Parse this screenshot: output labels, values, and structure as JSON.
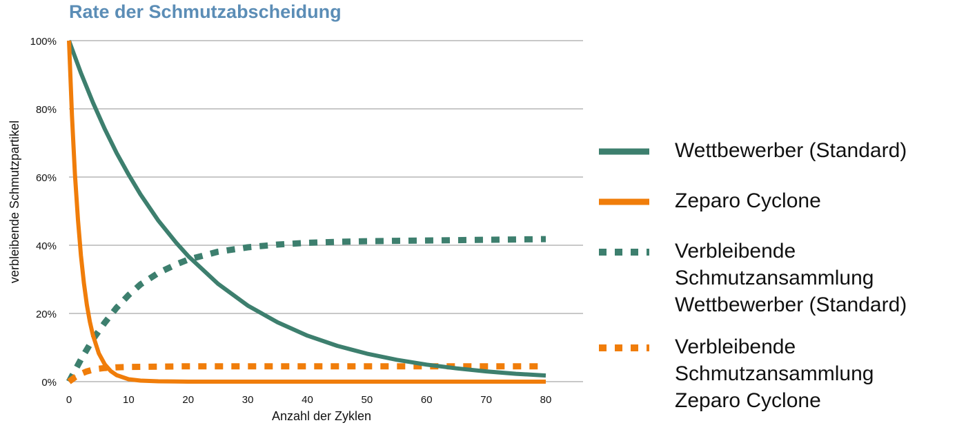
{
  "chart_data": {
    "type": "line",
    "title": "Rate der Schmutzabscheidung",
    "xlabel": "Anzahl der Zyklen",
    "ylabel": "verbleibende Schmutzpartikel",
    "xlim": [
      0,
      80
    ],
    "ylim": [
      0,
      100
    ],
    "x_ticks": [
      "0",
      "10",
      "20",
      "30",
      "40",
      "50",
      "60",
      "70",
      "80"
    ],
    "y_ticks": [
      "0%",
      "20%",
      "40%",
      "60%",
      "80%",
      "100%"
    ],
    "grid": "horizontal",
    "legend_position": "right",
    "series": [
      {
        "name": "Wettbewerber (Standard)",
        "style": "solid",
        "color": "#3d7f6e",
        "x": [
          0,
          2,
          4,
          6,
          8,
          10,
          12,
          15,
          18,
          20,
          25,
          30,
          35,
          40,
          45,
          50,
          55,
          60,
          65,
          70,
          75,
          80
        ],
        "y": [
          100,
          90.5,
          81.9,
          74.1,
          67.0,
          60.7,
          54.9,
          47.2,
          40.7,
          36.8,
          28.7,
          22.3,
          17.4,
          13.5,
          10.5,
          8.2,
          6.4,
          5.0,
          3.9,
          3.0,
          2.3,
          1.8
        ]
      },
      {
        "name": "Zeparo Cyclone",
        "style": "solid",
        "color": "#f07d0a",
        "x": [
          0,
          0.5,
          1,
          1.5,
          2,
          2.5,
          3,
          3.5,
          4,
          5,
          6,
          7,
          8,
          10,
          12,
          15,
          20,
          30,
          40,
          50,
          60,
          70,
          80
        ],
        "y": [
          100,
          78.0,
          60.8,
          47.5,
          37.0,
          28.9,
          22.5,
          17.6,
          13.7,
          8.3,
          5.1,
          3.1,
          1.9,
          0.7,
          0.3,
          0.1,
          0,
          0,
          0,
          0,
          0,
          0,
          0
        ]
      },
      {
        "name": "Verbleibende\nSchmutzansammlung\nWettbewerber (Standard)",
        "style": "dotted",
        "color": "#3d7f6e",
        "x": [
          0,
          2,
          4,
          6,
          8,
          10,
          12,
          15,
          18,
          20,
          25,
          30,
          35,
          40,
          45,
          50,
          55,
          60,
          65,
          70,
          75,
          80
        ],
        "y": [
          0,
          6.5,
          12.4,
          17.3,
          21.7,
          25.4,
          28.5,
          31.9,
          34.4,
          35.8,
          38.1,
          39.4,
          40.2,
          40.7,
          41.0,
          41.2,
          41.3,
          41.4,
          41.5,
          41.6,
          41.7,
          41.8
        ]
      },
      {
        "name": "Verbleibende\nSchmutzansammlung\nZeparo Cyclone",
        "style": "dotted",
        "color": "#f07d0a",
        "x": [
          0,
          1,
          2,
          3,
          4,
          5,
          6,
          7,
          8,
          10,
          15,
          20,
          30,
          40,
          50,
          60,
          70,
          80
        ],
        "y": [
          0,
          1.3,
          2.3,
          3.0,
          3.5,
          3.8,
          4.0,
          4.1,
          4.2,
          4.3,
          4.4,
          4.5,
          4.5,
          4.5,
          4.5,
          4.5,
          4.5,
          4.5
        ]
      }
    ]
  }
}
